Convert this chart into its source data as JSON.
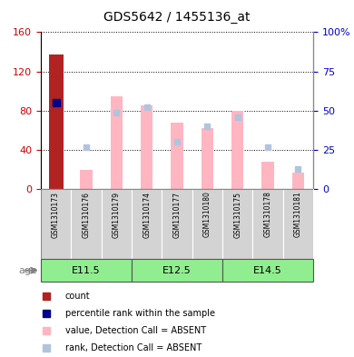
{
  "title": "GDS5642 / 1455136_at",
  "samples": [
    "GSM1310173",
    "GSM1310176",
    "GSM1310179",
    "GSM1310174",
    "GSM1310177",
    "GSM1310180",
    "GSM1310175",
    "GSM1310178",
    "GSM1310181"
  ],
  "count_bar_index": 0,
  "count_bar_value": 137,
  "count_bar_color": "#B22222",
  "percentile_index": 0,
  "percentile_value": 55,
  "percentile_color": "#00008B",
  "value_absent": [
    null,
    20,
    95,
    85,
    68,
    62,
    80,
    28,
    17
  ],
  "rank_absent": [
    null,
    27,
    49,
    52,
    30,
    40,
    46,
    27,
    13
  ],
  "value_absent_color": "#FFB6C1",
  "rank_absent_color": "#B0C4DE",
  "ylim_left": [
    0,
    160
  ],
  "ylim_right": [
    0,
    100
  ],
  "yticks_left": [
    0,
    40,
    80,
    120,
    160
  ],
  "yticks_right": [
    0,
    25,
    50,
    75,
    100
  ],
  "ylabel_left_color": "#CC0000",
  "ylabel_right_color": "#0000CC",
  "group_boundaries": [
    0,
    3,
    6,
    9
  ],
  "group_labels": [
    "E11.5",
    "E12.5",
    "E14.5"
  ],
  "group_color": "#90EE90",
  "legend_items": [
    {
      "label": "count",
      "color": "#B22222"
    },
    {
      "label": "percentile rank within the sample",
      "color": "#00008B"
    },
    {
      "label": "value, Detection Call = ABSENT",
      "color": "#FFB6C1"
    },
    {
      "label": "rank, Detection Call = ABSENT",
      "color": "#B0C4DE"
    }
  ],
  "bar_width": 0.4,
  "sample_bg_color": "#D3D3D3",
  "group_border_color": "#555555"
}
